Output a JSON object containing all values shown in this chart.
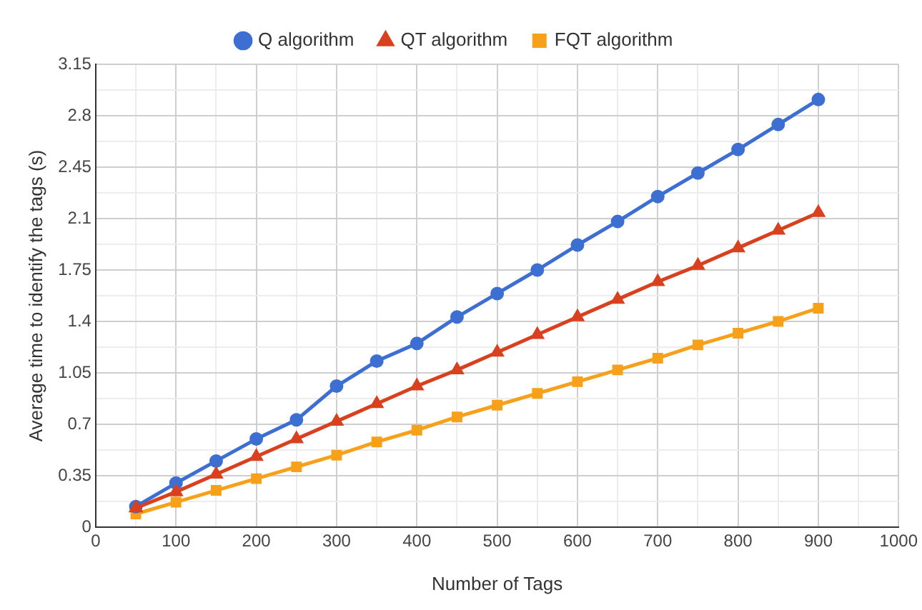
{
  "chart_data": {
    "type": "line",
    "xlabel": "Number of Tags",
    "ylabel": "Average time to identify the tags (s)",
    "x": [
      50,
      100,
      150,
      200,
      250,
      300,
      350,
      400,
      450,
      500,
      550,
      600,
      650,
      700,
      750,
      800,
      850,
      900
    ],
    "series": [
      {
        "name": "Q algorithm",
        "color": "#3c6fd1",
        "marker": "circle",
        "values": [
          0.14,
          0.3,
          0.45,
          0.6,
          0.73,
          0.96,
          1.13,
          1.25,
          1.43,
          1.59,
          1.75,
          1.92,
          2.08,
          2.25,
          2.41,
          2.57,
          2.74,
          2.91
        ]
      },
      {
        "name": "QT algorithm",
        "color": "#d9411e",
        "marker": "triangle",
        "values": [
          0.13,
          0.24,
          0.36,
          0.48,
          0.6,
          0.72,
          0.84,
          0.96,
          1.07,
          1.19,
          1.31,
          1.43,
          1.55,
          1.67,
          1.78,
          1.9,
          2.02,
          2.14
        ]
      },
      {
        "name": "FQT algorithm",
        "color": "#f7a11a",
        "marker": "square",
        "values": [
          0.09,
          0.17,
          0.25,
          0.33,
          0.41,
          0.49,
          0.58,
          0.66,
          0.75,
          0.83,
          0.91,
          0.99,
          1.07,
          1.15,
          1.24,
          1.32,
          1.4,
          1.49
        ]
      }
    ],
    "xlim": [
      0,
      1000
    ],
    "xticks": [
      0,
      {
        "value": 50,
        "label": null
      },
      100,
      {
        "value": 150,
        "label": null
      },
      200,
      {
        "value": 250,
        "label": null
      },
      300,
      {
        "value": 350,
        "label": null
      },
      400,
      {
        "value": 450,
        "label": null
      },
      500,
      {
        "value": 550,
        "label": null
      },
      600,
      {
        "value": 650,
        "label": null
      },
      700,
      {
        "value": 750,
        "label": null
      },
      800,
      {
        "value": 850,
        "label": null
      },
      900,
      {
        "value": 950,
        "label": null
      },
      1000
    ],
    "ylim": [
      0,
      3.15
    ],
    "yticks": [
      0,
      {
        "value": 0.175,
        "label": null
      },
      0.35,
      {
        "value": 0.525,
        "label": null
      },
      0.7,
      {
        "value": 0.875,
        "label": null
      },
      1.05,
      {
        "value": 1.225,
        "label": null
      },
      1.4,
      {
        "value": 1.575,
        "label": null
      },
      1.75,
      {
        "value": 1.925,
        "label": null
      },
      2.1,
      {
        "value": 2.275,
        "label": null
      },
      2.45,
      {
        "value": 2.625,
        "label": null
      },
      2.8,
      {
        "value": 2.975,
        "label": null
      },
      3.15
    ],
    "grid": true,
    "legend": "top",
    "line_style": "solid"
  }
}
